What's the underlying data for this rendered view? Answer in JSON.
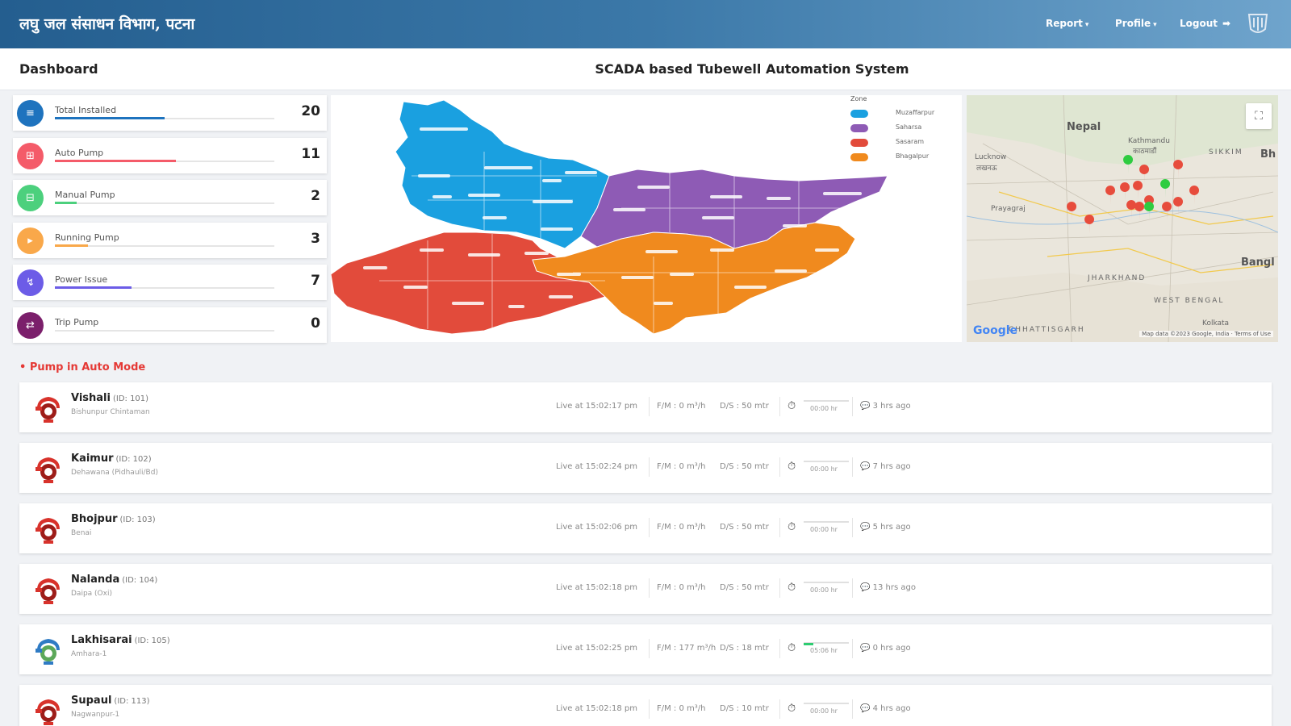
{
  "header": {
    "brand": "लघु जल संसाधन विभाग, पटना",
    "nav": [
      {
        "label": "Report"
      },
      {
        "label": "Profile"
      },
      {
        "label": "Logout"
      }
    ]
  },
  "titlebar": {
    "dashboard": "Dashboard",
    "system_title": "SCADA based Tubewell Automation System"
  },
  "stats": [
    {
      "label": "Total Installed",
      "value": "20",
      "color": "#1e73be",
      "icon": "list-icon",
      "glyph": "≡",
      "progress": 0.5
    },
    {
      "label": "Auto Pump",
      "value": "11",
      "color": "#f45b69",
      "icon": "pump-icon",
      "glyph": "⊞",
      "progress": 0.55
    },
    {
      "label": "Manual Pump",
      "value": "2",
      "color": "#4cd07d",
      "icon": "hand-icon",
      "glyph": "⊟",
      "progress": 0.1
    },
    {
      "label": "Running Pump",
      "value": "3",
      "color": "#f9a84a",
      "icon": "play-icon",
      "glyph": "▸",
      "progress": 0.15
    },
    {
      "label": "Power Issue",
      "value": "7",
      "color": "#6c5ce7",
      "icon": "chart-icon",
      "glyph": "↯",
      "progress": 0.35
    },
    {
      "label": "Trip Pump",
      "value": "0",
      "color": "#7b1f6b",
      "icon": "trip-icon",
      "glyph": "⇄",
      "progress": 0.0
    }
  ],
  "legend": {
    "zone_header": "Zone",
    "zones": [
      {
        "name": "Muzaffarpur",
        "color": "#1aa0e0"
      },
      {
        "name": "Saharsa",
        "color": "#8e5bb5"
      },
      {
        "name": "Sasaram",
        "color": "#e24b3b"
      },
      {
        "name": "Bhagalpur",
        "color": "#f08a1e"
      }
    ]
  },
  "gmap": {
    "labels": [
      "Nepal",
      "Kathmandu",
      "काठमाडौं",
      "Lucknow",
      "लखनऊ",
      "Prayagraj",
      "JHARKHAND",
      "WEST BENGAL",
      "Kolkata",
      "Bangl",
      "SIKKIM",
      "Bh",
      "CHHATTISGARH"
    ],
    "logo": "Google",
    "terms": "Map data ©2023 Google, India · Terms of Use"
  },
  "section": {
    "title": "• Pump in Auto Mode"
  },
  "pumps": [
    {
      "name": "Vishali",
      "id": "(ID: 101)",
      "sub": "Bishunpur Chintaman",
      "live": "Live at 15:02:17 pm",
      "flow": "F/M : 0 m³/h",
      "dis": "D/S : 50 mtr",
      "run": "00:00 hr",
      "run_pct": 0.0,
      "ago": "3 hrs ago",
      "running": false
    },
    {
      "name": "Kaimur",
      "id": "(ID: 102)",
      "sub": "Dehawana (Pidhauli/Bd)",
      "live": "Live at 15:02:24 pm",
      "flow": "F/M : 0 m³/h",
      "dis": "D/S : 50 mtr",
      "run": "00:00 hr",
      "run_pct": 0.0,
      "ago": "7 hrs ago",
      "running": false
    },
    {
      "name": "Bhojpur",
      "id": "(ID: 103)",
      "sub": "Benai",
      "live": "Live at 15:02:06 pm",
      "flow": "F/M : 0 m³/h",
      "dis": "D/S : 50 mtr",
      "run": "00:00 hr",
      "run_pct": 0.0,
      "ago": "5 hrs ago",
      "running": false
    },
    {
      "name": "Nalanda",
      "id": "(ID: 104)",
      "sub": "Daipa (Oxi)",
      "live": "Live at 15:02:18 pm",
      "flow": "F/M : 0 m³/h",
      "dis": "D/S : 50 mtr",
      "run": "00:00 hr",
      "run_pct": 0.0,
      "ago": "13 hrs ago",
      "running": false
    },
    {
      "name": "Lakhisarai",
      "id": "(ID: 105)",
      "sub": "Amhara-1",
      "live": "Live at 15:02:25 pm",
      "flow": "F/M : 177 m³/h",
      "dis": "D/S : 18 mtr",
      "run": "05:06 hr",
      "run_pct": 0.21,
      "ago": "0 hrs ago",
      "running": true
    },
    {
      "name": "Supaul",
      "id": "(ID: 113)",
      "sub": "Nagwanpur-1",
      "live": "Live at 15:02:18 pm",
      "flow": "F/M : 0 m³/h",
      "dis": "D/S : 10 mtr",
      "run": "00:00 hr",
      "run_pct": 0.0,
      "ago": "4 hrs ago",
      "running": false
    }
  ]
}
